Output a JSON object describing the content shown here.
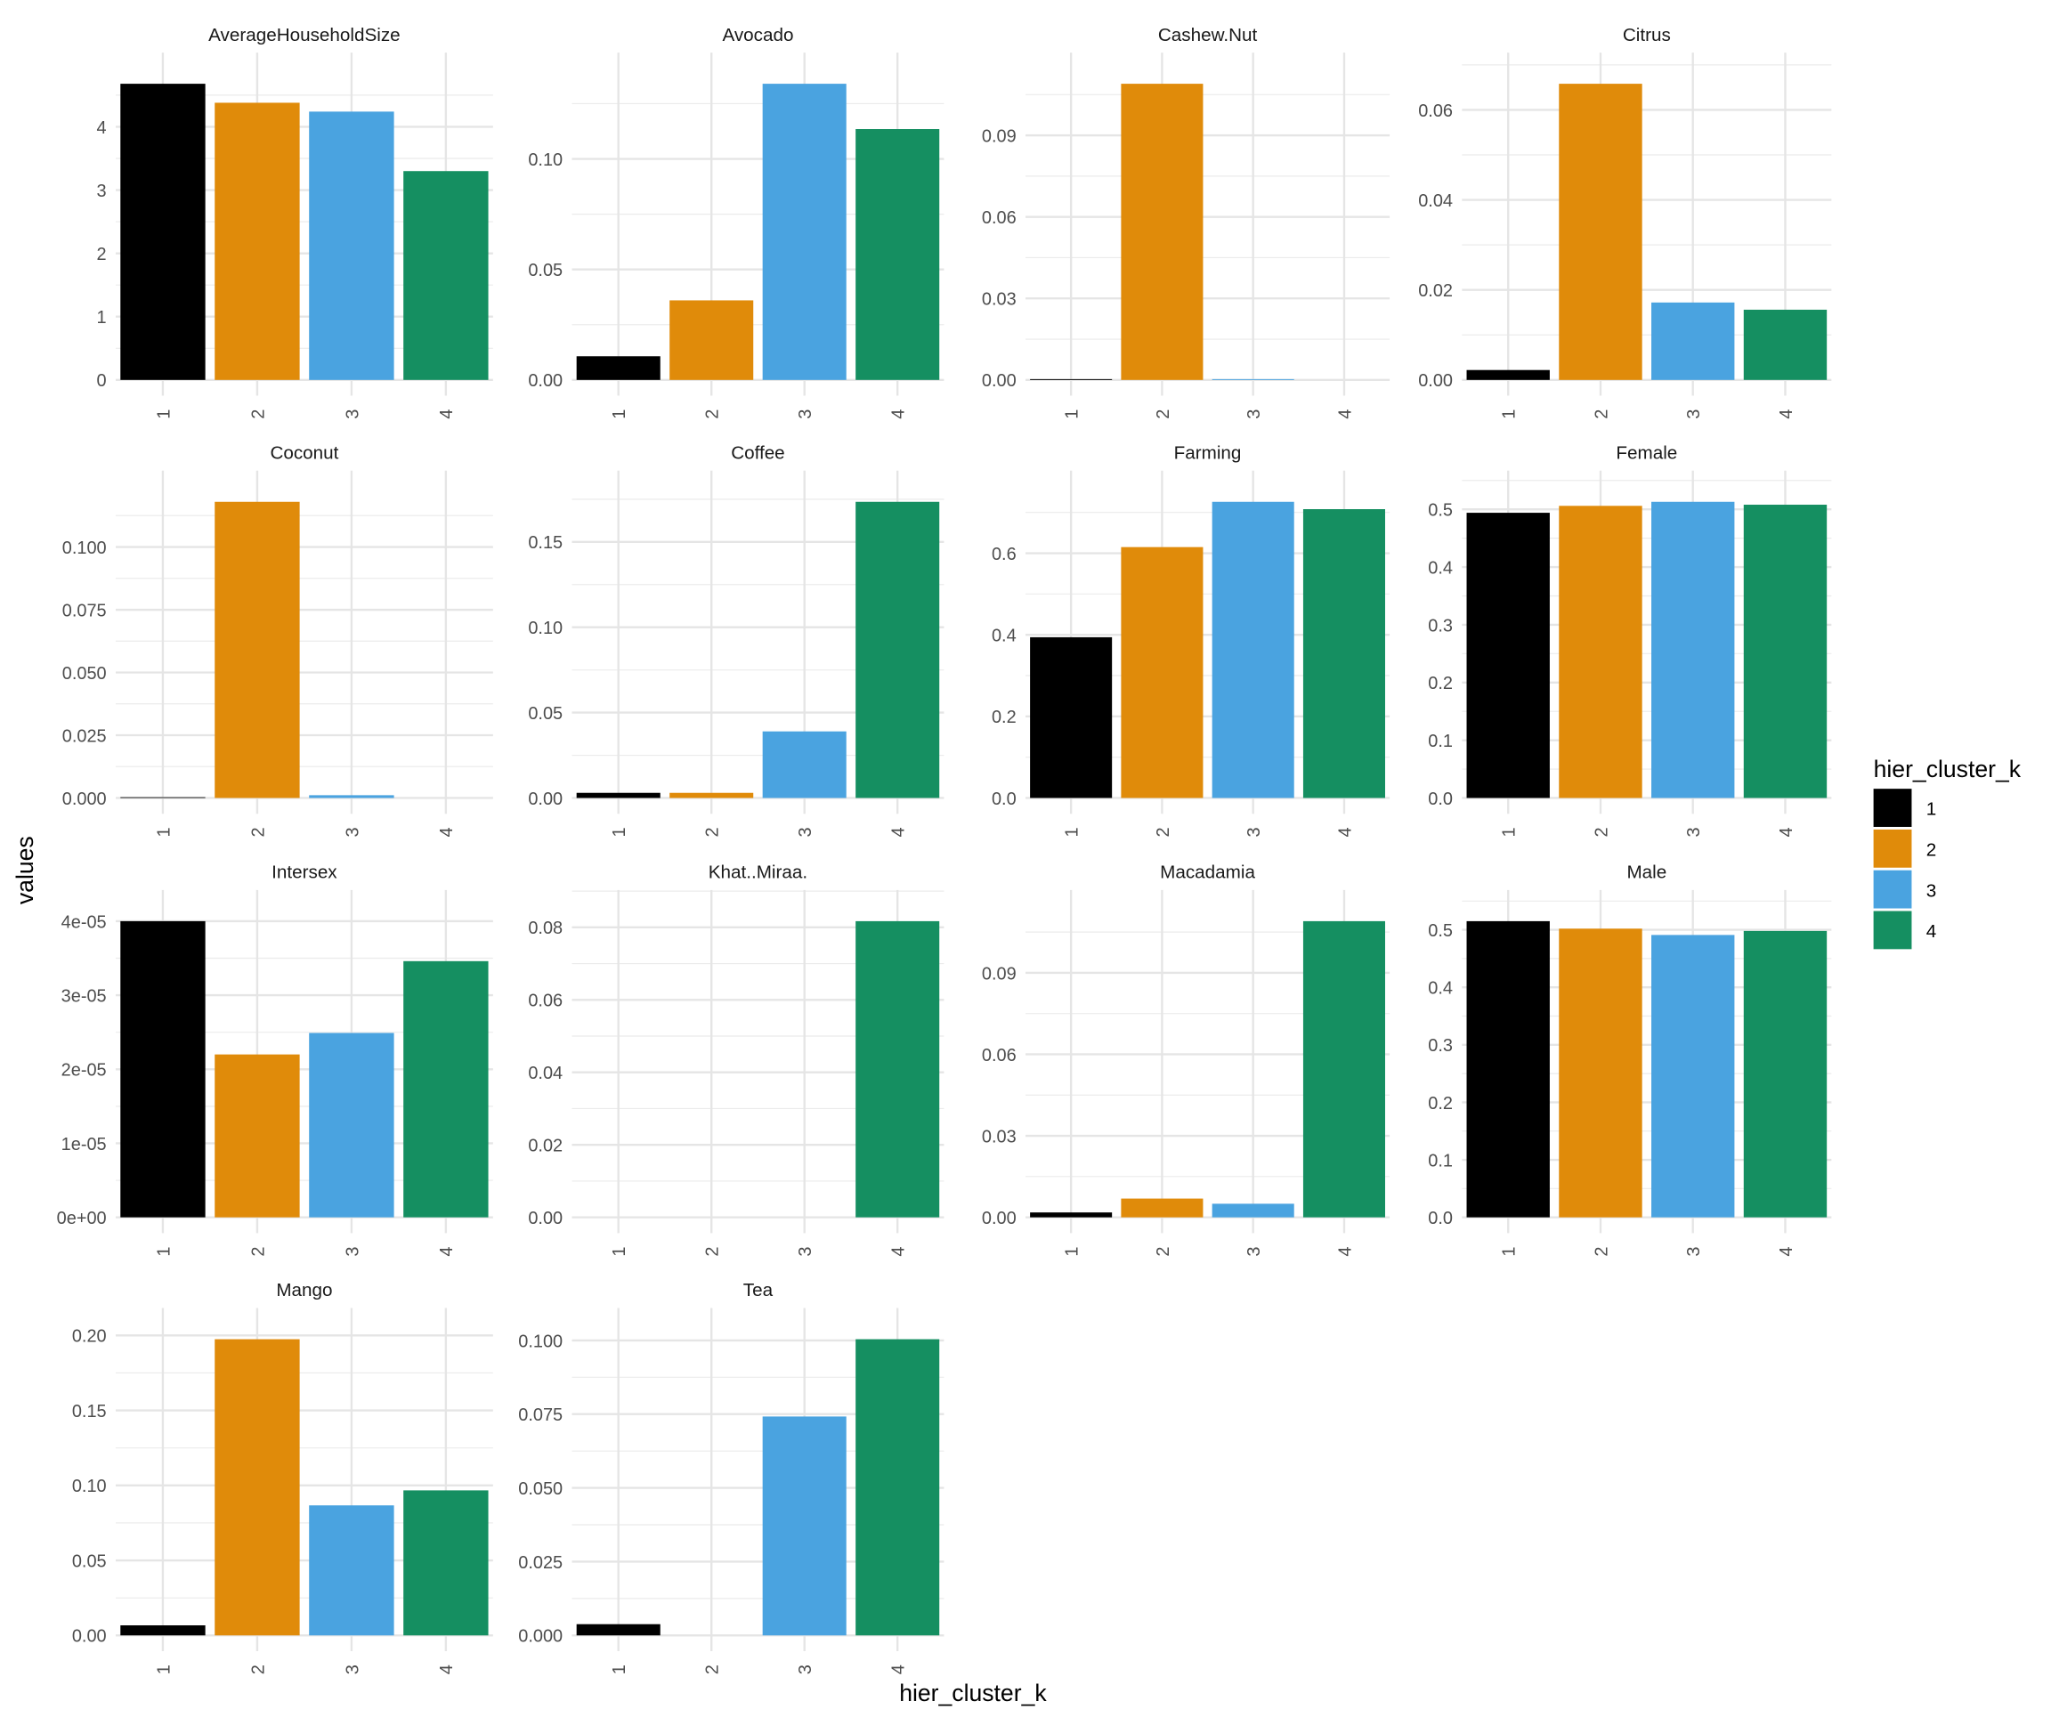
{
  "chart_data": {
    "type": "bar",
    "layout": "facet-wrap 4 columns, free y scales",
    "xlabel": "hier_cluster_k",
    "ylabel": "values",
    "categories": [
      "1",
      "2",
      "3",
      "4"
    ],
    "grid": true,
    "legend": {
      "title": "hier_cluster_k",
      "position": "right",
      "entries": [
        "1",
        "2",
        "3",
        "4"
      ],
      "colors": [
        "#000000",
        "#E08B0A",
        "#4AA3E0",
        "#158F61"
      ]
    },
    "panels": [
      {
        "title": "AverageHouseholdSize",
        "values": [
          4.68,
          4.38,
          4.24,
          3.3
        ],
        "ticks": [
          [
            0,
            "0"
          ],
          [
            1,
            "1"
          ],
          [
            2,
            "2"
          ],
          [
            3,
            "3"
          ],
          [
            4,
            "4"
          ]
        ]
      },
      {
        "title": "Avocado",
        "values": [
          0.0107,
          0.036,
          0.134,
          0.1135
        ],
        "ticks": [
          [
            0,
            "0.00"
          ],
          [
            0.05,
            "0.05"
          ],
          [
            0.1,
            "0.10"
          ]
        ]
      },
      {
        "title": "Cashew.Nut",
        "values": [
          0.0003,
          0.109,
          0.0003,
          0
        ],
        "ticks": [
          [
            0,
            "0.00"
          ],
          [
            0.03,
            "0.03"
          ],
          [
            0.06,
            "0.06"
          ],
          [
            0.09,
            "0.09"
          ]
        ]
      },
      {
        "title": "Citrus",
        "values": [
          0.0022,
          0.0658,
          0.0172,
          0.0156
        ],
        "ticks": [
          [
            0,
            "0.00"
          ],
          [
            0.02,
            "0.02"
          ],
          [
            0.04,
            "0.04"
          ],
          [
            0.06,
            "0.06"
          ]
        ]
      },
      {
        "title": "Coconut",
        "values": [
          0.0003,
          0.118,
          0.0011,
          0
        ],
        "ticks": [
          [
            0,
            "0.000"
          ],
          [
            0.025,
            "0.025"
          ],
          [
            0.05,
            "0.050"
          ],
          [
            0.075,
            "0.075"
          ],
          [
            0.1,
            "0.100"
          ]
        ]
      },
      {
        "title": "Coffee",
        "values": [
          0.003,
          0.003,
          0.039,
          0.1735
        ],
        "ticks": [
          [
            0,
            "0.00"
          ],
          [
            0.05,
            "0.05"
          ],
          [
            0.1,
            "0.10"
          ],
          [
            0.15,
            "0.15"
          ]
        ]
      },
      {
        "title": "Farming",
        "values": [
          0.394,
          0.615,
          0.726,
          0.708
        ],
        "ticks": [
          [
            0,
            "0.0"
          ],
          [
            0.2,
            "0.2"
          ],
          [
            0.4,
            "0.4"
          ],
          [
            0.6,
            "0.6"
          ]
        ]
      },
      {
        "title": "Female",
        "values": [
          0.494,
          0.506,
          0.513,
          0.508
        ],
        "ticks": [
          [
            0,
            "0.0"
          ],
          [
            0.1,
            "0.1"
          ],
          [
            0.2,
            "0.2"
          ],
          [
            0.3,
            "0.3"
          ],
          [
            0.4,
            "0.4"
          ],
          [
            0.5,
            "0.5"
          ]
        ]
      },
      {
        "title": "Intersex",
        "values": [
          4e-05,
          2.2e-05,
          2.49e-05,
          3.46e-05
        ],
        "ticks": [
          [
            0,
            "0e+00"
          ],
          [
            1e-05,
            "1e-05"
          ],
          [
            2e-05,
            "2e-05"
          ],
          [
            3e-05,
            "3e-05"
          ],
          [
            4e-05,
            "4e-05"
          ]
        ]
      },
      {
        "title": "Khat..Miraa.",
        "values": [
          0,
          0,
          0,
          0.0817
        ],
        "ticks": [
          [
            0,
            "0.00"
          ],
          [
            0.02,
            "0.02"
          ],
          [
            0.04,
            "0.04"
          ],
          [
            0.06,
            "0.06"
          ],
          [
            0.08,
            "0.08"
          ]
        ]
      },
      {
        "title": "Macadamia",
        "values": [
          0.0018,
          0.0069,
          0.005,
          0.109
        ],
        "ticks": [
          [
            0,
            "0.00"
          ],
          [
            0.03,
            "0.03"
          ],
          [
            0.06,
            "0.06"
          ],
          [
            0.09,
            "0.09"
          ]
        ]
      },
      {
        "title": "Male",
        "values": [
          0.515,
          0.502,
          0.491,
          0.498
        ],
        "ticks": [
          [
            0,
            "0.0"
          ],
          [
            0.1,
            "0.1"
          ],
          [
            0.2,
            "0.2"
          ],
          [
            0.3,
            "0.3"
          ],
          [
            0.4,
            "0.4"
          ],
          [
            0.5,
            "0.5"
          ]
        ]
      },
      {
        "title": "Mango",
        "values": [
          0.0067,
          0.1975,
          0.0867,
          0.0967
        ],
        "ticks": [
          [
            0,
            "0.00"
          ],
          [
            0.05,
            "0.05"
          ],
          [
            0.1,
            "0.10"
          ],
          [
            0.15,
            "0.15"
          ],
          [
            0.2,
            "0.20"
          ]
        ]
      },
      {
        "title": "Tea",
        "values": [
          0.0038,
          0,
          0.0742,
          0.1004
        ],
        "ticks": [
          [
            0,
            "0.000"
          ],
          [
            0.025,
            "0.025"
          ],
          [
            0.05,
            "0.050"
          ],
          [
            0.075,
            "0.075"
          ],
          [
            0.1,
            "0.100"
          ]
        ]
      }
    ]
  }
}
